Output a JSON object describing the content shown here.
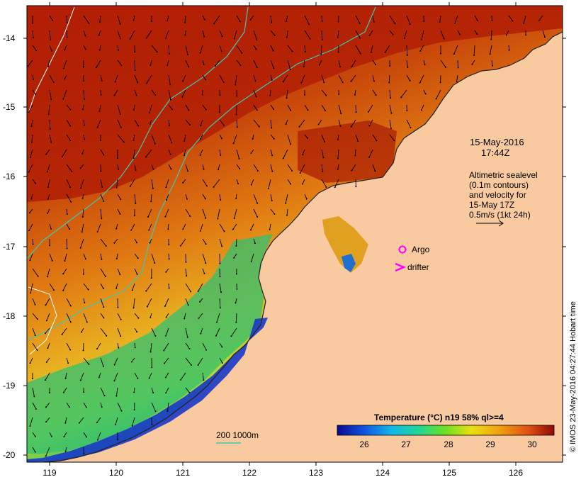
{
  "timestamp": {
    "date": "15-May-2016",
    "time": "17:44Z"
  },
  "legend_text": {
    "line1": "Altimetric sealevel",
    "line2": "(0.1m contours)",
    "line3": "and velocity for",
    "line4": "15-May 17Z",
    "line5": "0.5m/s (1kt 24h)"
  },
  "markers": {
    "argo": "Argo",
    "drifter": "drifter"
  },
  "isobath_legend": "200  1000m",
  "colorbar": {
    "title": "Temperature (°C) n19 58% ql>=4",
    "ticks": [
      "26",
      "27",
      "28",
      "29",
      "30"
    ]
  },
  "axes": {
    "lon_ticks": [
      "119",
      "120",
      "121",
      "122",
      "123",
      "124",
      "125",
      "126"
    ],
    "lat_ticks": [
      "-14",
      "-15",
      "-16",
      "-17",
      "-18",
      "-19",
      "-20"
    ]
  },
  "credit": "© IMOS 23-May-2016 04:27:44 Hobart time",
  "colors": {
    "land": "#f9c9a0",
    "warm_sst": "#c02a0a",
    "cool_sst": "#2030d0",
    "isobath": "#40c8b0",
    "argo_marker": "#ff00ff"
  }
}
